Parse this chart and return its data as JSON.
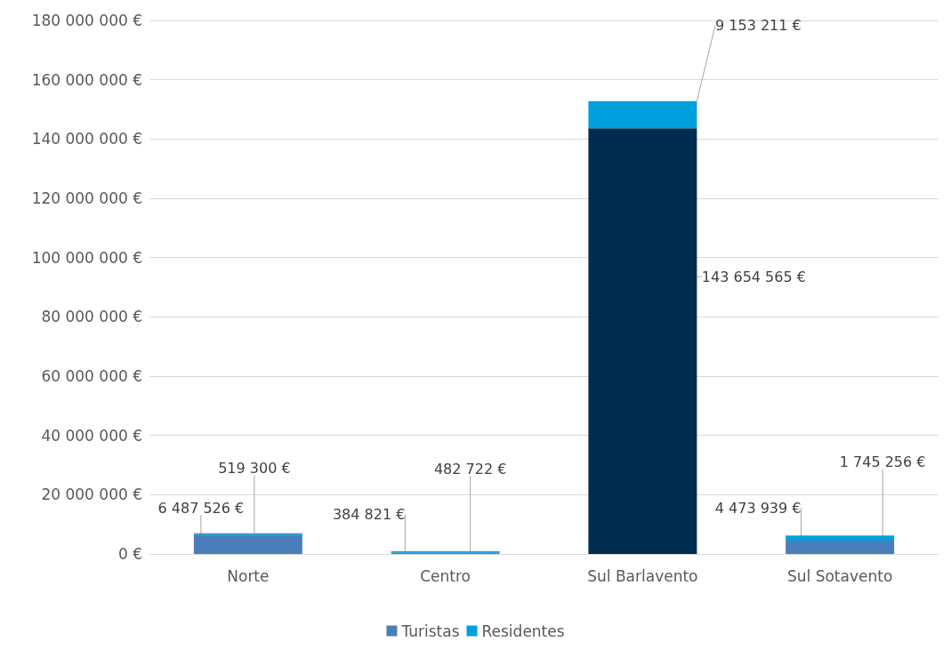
{
  "chart_data": {
    "type": "bar",
    "stacked": true,
    "categories": [
      "Norte",
      "Centro",
      "Sul Barlavento",
      "Sul Sotavento"
    ],
    "series": [
      {
        "name": "Turistas",
        "color": "#4a7ebb",
        "colors": [
          "#4a7ebb",
          "#4a7ebb",
          "#002d4f",
          "#4a7ebb"
        ],
        "values": [
          6487526,
          384821,
          143654565,
          4473939
        ],
        "value_labels": [
          "6 487 526 €",
          "384 821 €",
          "143 654 565 €",
          "4 473 939 €"
        ]
      },
      {
        "name": "Residentes",
        "color": "#00a0dc",
        "values": [
          519300,
          482722,
          9153211,
          1745256
        ],
        "value_labels": [
          "519 300 €",
          "482 722 €",
          "9 153 211 €",
          "1 745 256 €"
        ]
      }
    ],
    "ylim": [
      0,
      180000000
    ],
    "yticks": [
      {
        "value": 0,
        "label": "0 €"
      },
      {
        "value": 20000000,
        "label": "20 000 000 €"
      },
      {
        "value": 40000000,
        "label": "40 000 000 €"
      },
      {
        "value": 60000000,
        "label": "60 000 000 €"
      },
      {
        "value": 80000000,
        "label": "80 000 000 €"
      },
      {
        "value": 100000000,
        "label": "100 000 000 €"
      },
      {
        "value": 120000000,
        "label": "120 000 000 €"
      },
      {
        "value": 140000000,
        "label": "140 000 000 €"
      },
      {
        "value": 160000000,
        "label": "160 000 000 €"
      },
      {
        "value": 180000000,
        "label": "180 000 000 €"
      }
    ],
    "grid": "y",
    "legend": "bottom"
  }
}
